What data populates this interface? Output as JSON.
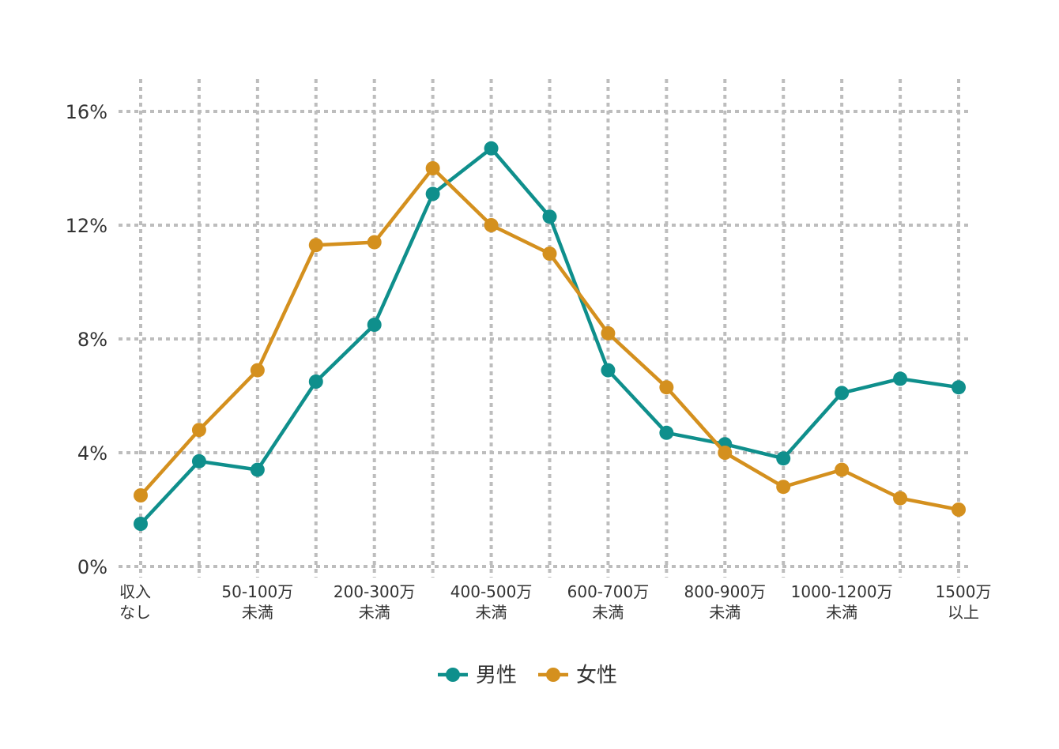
{
  "chart_data": {
    "type": "line",
    "categories": [
      [
        "収入",
        "なし"
      ],
      [
        "",
        ""
      ],
      [
        "50-100万",
        "未満"
      ],
      [
        "",
        ""
      ],
      [
        "200-300万",
        "未満"
      ],
      [
        "",
        ""
      ],
      [
        "400-500万",
        "未満"
      ],
      [
        "",
        ""
      ],
      [
        "600-700万",
        "未満"
      ],
      [
        "",
        ""
      ],
      [
        "800-900万",
        "未満"
      ],
      [
        "",
        ""
      ],
      [
        "1000-1200万",
        "未満"
      ],
      [
        "",
        ""
      ],
      [
        "1500万",
        "以上"
      ]
    ],
    "y_ticks": [
      {
        "value": 0,
        "label": "0%"
      },
      {
        "value": 4,
        "label": "4%"
      },
      {
        "value": 8,
        "label": "8%"
      },
      {
        "value": 12,
        "label": "12%"
      },
      {
        "value": 16,
        "label": "16%"
      }
    ],
    "ylim": [
      0,
      17.1
    ],
    "grid": true,
    "legend_position": "bottom",
    "series": [
      {
        "name": "男性",
        "color": "#0f8f8c",
        "values": [
          1.5,
          3.7,
          3.4,
          6.5,
          8.5,
          13.1,
          14.7,
          12.3,
          6.9,
          4.7,
          4.3,
          3.8,
          6.1,
          6.6,
          6.3
        ]
      },
      {
        "name": "女性",
        "color": "#d4901e",
        "values": [
          2.5,
          4.8,
          6.9,
          11.3,
          11.4,
          14.0,
          12.0,
          11.0,
          8.2,
          6.3,
          4.0,
          2.8,
          3.4,
          2.4,
          2.0
        ]
      }
    ]
  }
}
